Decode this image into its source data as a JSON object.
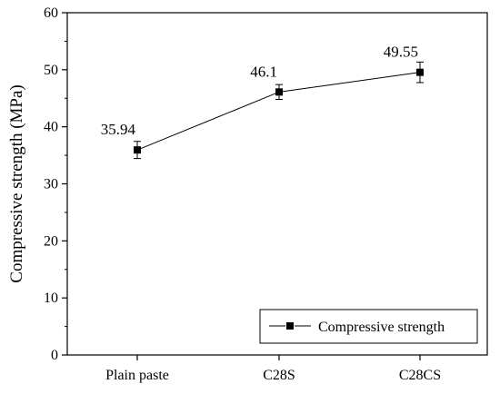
{
  "chart_data": {
    "type": "line",
    "categories": [
      "Plain paste",
      "C28S",
      "C28CS"
    ],
    "series": [
      {
        "name": "Compressive strength",
        "values": [
          35.94,
          46.1,
          49.55
        ],
        "errors": [
          1.5,
          1.3,
          1.8
        ],
        "data_labels": [
          "35.94",
          "46.1",
          "49.55"
        ],
        "marker": "square",
        "color": "#000000"
      }
    ],
    "ylabel": "Compressive strength (MPa)",
    "xlabel": "",
    "ylim": [
      0,
      60
    ],
    "yticks": [
      "0",
      "10",
      "20",
      "30",
      "40",
      "50",
      "60"
    ],
    "grid": false,
    "legend_position": "bottom-right"
  }
}
